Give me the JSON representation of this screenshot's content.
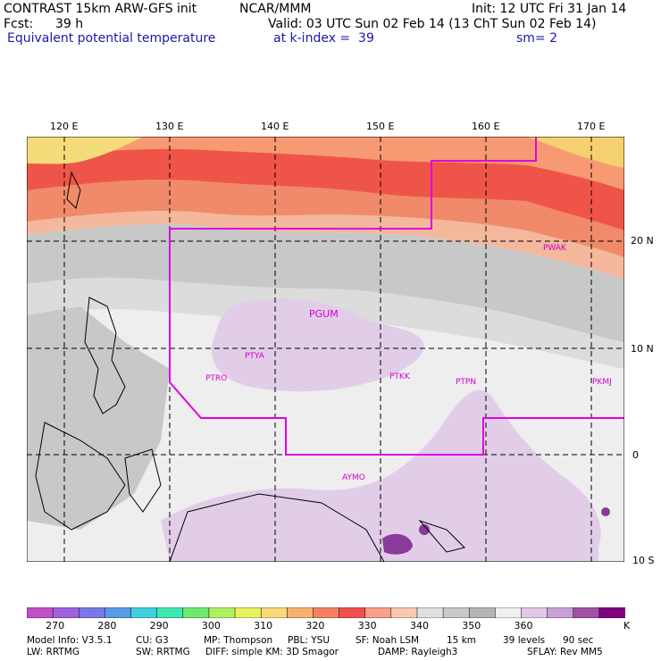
{
  "header": {
    "model": "CONTRAST 15km ARW-GFS init",
    "org": "NCAR/MMM",
    "init": "Init: 12 UTC Fri 31 Jan 14",
    "fcst_label": "Fcst:",
    "fcst_value": "39 h",
    "valid": "Valid: 03 UTC Sun 02 Feb 14 (13 ChT Sun 02 Feb 14)",
    "field": "Equivalent potential temperature",
    "level": "at k-index =  39",
    "smooth": "sm= 2"
  },
  "axes": {
    "lon_labels": [
      "120 E",
      "130 E",
      "140 E",
      "150 E",
      "160 E",
      "170 E"
    ],
    "lat_labels": [
      "20 N",
      "10 N",
      "0",
      "10 S"
    ]
  },
  "stations": [
    "PWAK",
    "PGUM",
    "PTYA",
    "PTRO",
    "PTKK",
    "PTPN",
    "PKMJ",
    "AYMO"
  ],
  "colorbar": {
    "labels": [
      "270",
      "280",
      "290",
      "300",
      "310",
      "320",
      "330",
      "340",
      "350",
      "360"
    ],
    "unit": "K",
    "colors": [
      "#c050c8",
      "#a060e0",
      "#7878e8",
      "#5a9be8",
      "#40d0e0",
      "#40e8b0",
      "#70e870",
      "#b0f060",
      "#e8f060",
      "#f8d878",
      "#f8b070",
      "#f88060",
      "#f05050",
      "#f8a088",
      "#f8c8b0",
      "#e0e0e0",
      "#c8c8c8",
      "#b4b4b4",
      "#f0f0f0",
      "#e0c8e8",
      "#c8a0d8",
      "#a050a8",
      "#800080"
    ]
  },
  "model_info": {
    "line1": [
      "Model Info: V3.5.1",
      "CU: G3",
      "MP: Thompson",
      "PBL: YSU",
      "SF: Noah LSM",
      "15 km",
      "39 levels",
      "90 sec"
    ],
    "line2": [
      "LW: RRTMG",
      "SW: RRTMG",
      "DIFF: simple KM: 3D Smagor",
      "DAMP: Rayleigh3",
      "SFLAY: Rev MM5"
    ]
  }
}
